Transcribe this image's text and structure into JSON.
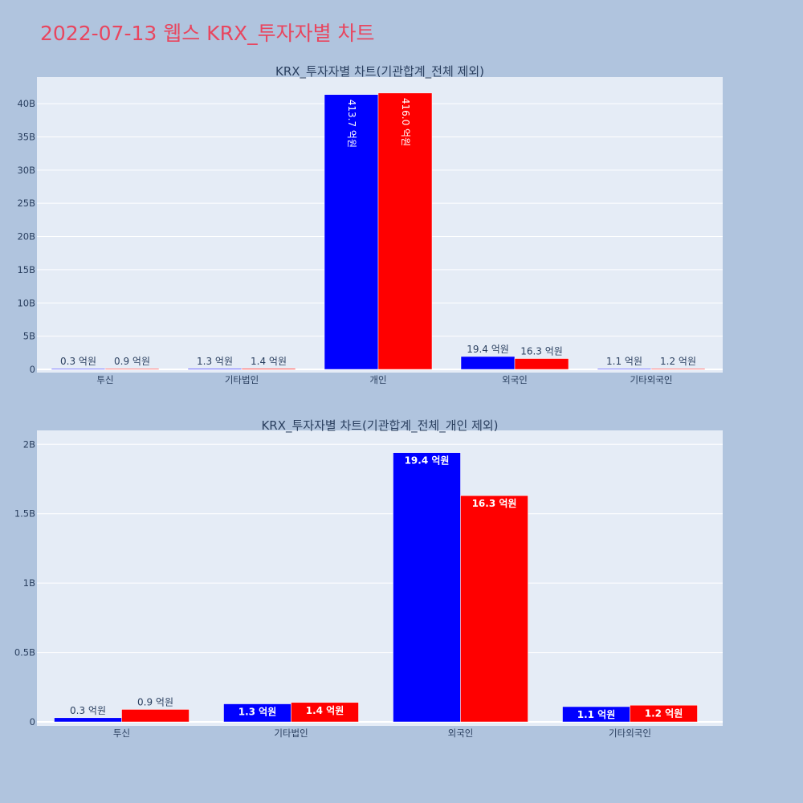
{
  "page_title": "2022-07-13 웹스 KRX_투자자별 차트",
  "colors": {
    "buy": "#0000ff",
    "sell": "#ff0000",
    "title": "#e8465f",
    "plot_bg": "#e5ecf6",
    "page_bg": "#b0c4de"
  },
  "chart_data": [
    {
      "type": "bar",
      "title": "KRX_투자자별 차트(기관합계_전체 제외)",
      "categories": [
        "투신",
        "기타법인",
        "개인",
        "외국인",
        "기타외국인"
      ],
      "series": [
        {
          "values": [
            0.03,
            0.13,
            41.37,
            1.94,
            0.11
          ],
          "labels": [
            "0.3 억원",
            "1.3 억원",
            "413.7 억원",
            "19.4 억원",
            "1.1 억원"
          ]
        },
        {
          "values": [
            0.09,
            0.14,
            41.6,
            1.63,
            0.12
          ],
          "labels": [
            "0.9 억원",
            "1.4 억원",
            "416.0 억원",
            "16.3 억원",
            "1.2 억원"
          ]
        }
      ],
      "yunit": "B",
      "ylim": [
        0,
        44
      ],
      "yticks": [
        0,
        5,
        10,
        15,
        20,
        25,
        30,
        35,
        40
      ],
      "ytick_labels": [
        "0",
        "5B",
        "10B",
        "15B",
        "20B",
        "25B",
        "30B",
        "35B",
        "40B"
      ],
      "grid": true,
      "legend": false
    },
    {
      "type": "bar",
      "title": "KRX_투자자별 차트(기관합계_전체_개인 제외)",
      "categories": [
        "투신",
        "기타법인",
        "외국인",
        "기타외국인"
      ],
      "series": [
        {
          "values": [
            0.03,
            0.13,
            1.94,
            0.11
          ],
          "labels": [
            "0.3 억원",
            "1.3 억원",
            "19.4 억원",
            "1.1 억원"
          ]
        },
        {
          "values": [
            0.09,
            0.14,
            1.63,
            0.12
          ],
          "labels": [
            "0.9 억원",
            "1.4 억원",
            "16.3 억원",
            "1.2 억원"
          ]
        }
      ],
      "yunit": "B",
      "ylim": [
        0,
        2.1
      ],
      "yticks": [
        0,
        0.5,
        1,
        1.5,
        2
      ],
      "ytick_labels": [
        "0",
        "0.5B",
        "1B",
        "1.5B",
        "2B"
      ],
      "grid": true,
      "legend": false
    }
  ]
}
